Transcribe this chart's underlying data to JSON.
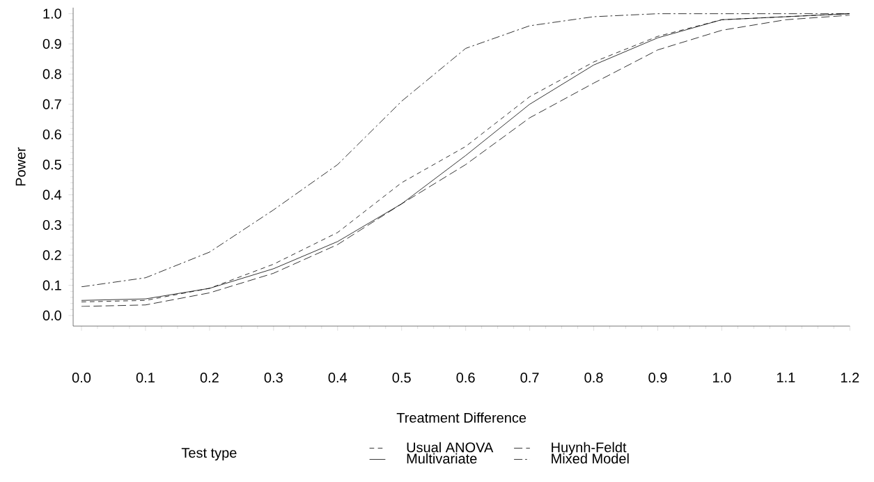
{
  "chart_data": {
    "type": "line",
    "xlabel": "Treatment Difference",
    "ylabel": "Power",
    "legend_title": "Test type",
    "x": [
      0.0,
      0.1,
      0.2,
      0.3,
      0.4,
      0.5,
      0.6,
      0.7,
      0.8,
      0.9,
      1.0,
      1.1,
      1.2
    ],
    "series": [
      {
        "name": "Usual ANOVA",
        "color": "#000000",
        "line_style": "dashed",
        "values": [
          0.045,
          0.05,
          0.09,
          0.17,
          0.275,
          0.44,
          0.56,
          0.725,
          0.84,
          0.925,
          0.98,
          0.99,
          1.0
        ]
      },
      {
        "name": "Huynh-Feldt",
        "color": "#000000",
        "line_style": "longdashed",
        "values": [
          0.03,
          0.035,
          0.075,
          0.14,
          0.235,
          0.37,
          0.5,
          0.655,
          0.77,
          0.88,
          0.945,
          0.98,
          0.995
        ]
      },
      {
        "name": "Multivariate",
        "color": "#000000",
        "line_style": "solid",
        "values": [
          0.05,
          0.055,
          0.09,
          0.155,
          0.245,
          0.37,
          0.53,
          0.7,
          0.83,
          0.92,
          0.98,
          0.99,
          1.0
        ]
      },
      {
        "name": "Mixed Model",
        "color": "#000000",
        "line_style": "dashdot",
        "values": [
          0.095,
          0.125,
          0.21,
          0.35,
          0.5,
          0.71,
          0.885,
          0.96,
          0.99,
          1.0,
          1.0,
          1.0,
          1.0
        ]
      }
    ],
    "xlim": [
      -0.013,
      1.2
    ],
    "ylim": [
      -0.035,
      1.02
    ],
    "xticks": [
      {
        "value": 0.0,
        "label": "0.0"
      },
      0.1,
      0.2,
      0.3,
      0.4,
      0.5,
      0.6,
      0.7,
      0.8,
      0.9,
      {
        "value": 1.0,
        "label": "1.0"
      },
      1.1,
      1.2
    ],
    "yticks": [
      {
        "value": 0.0,
        "label": "0.0"
      },
      0.1,
      0.2,
      0.3,
      0.4,
      0.5,
      0.6,
      0.7,
      0.8,
      0.9,
      {
        "value": 1.0,
        "label": "1.0"
      }
    ],
    "grid": false,
    "legend": "bottom",
    "marker": "none"
  }
}
